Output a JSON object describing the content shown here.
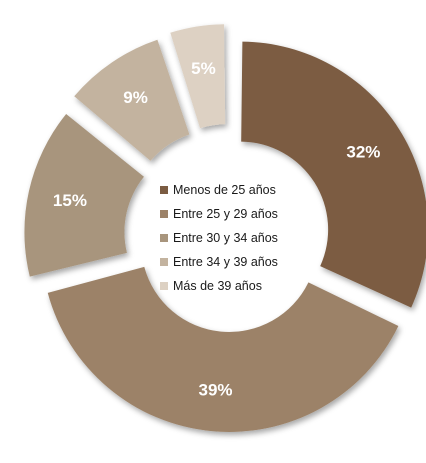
{
  "chart_data": {
    "type": "pie",
    "variant": "donut, exploded slices",
    "categories": [
      "Menos de 25 años",
      "Entre 25 y 29 años",
      "Entre 30 y 34 años",
      "Entre 34 y 39 años",
      "Más de 39 años"
    ],
    "values": [
      32,
      39,
      15,
      9,
      5
    ],
    "value_labels": [
      "32%",
      "39%",
      "15%",
      "9%",
      "5%"
    ],
    "colors": [
      "#7b5c42",
      "#9c8268",
      "#a8957d",
      "#c3b39f",
      "#ddd1c3"
    ],
    "legend_position": "center"
  }
}
